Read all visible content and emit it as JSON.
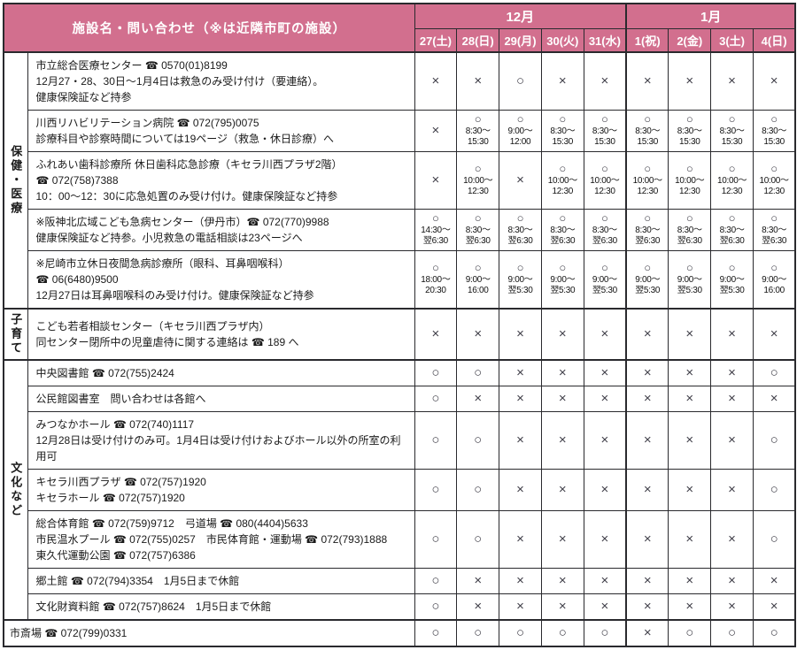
{
  "colors": {
    "header_bg": "#d26f8e",
    "border": "#2a2a2e",
    "mark": "#3f3e48"
  },
  "table": {
    "header": {
      "facility_col": "施設名・問い合わせ（※は近隣市町の施設）",
      "months": [
        {
          "label": "12月",
          "span": 5
        },
        {
          "label": "1月",
          "span": 4
        }
      ],
      "dates": [
        "27(土)",
        "28(日)",
        "29(月)",
        "30(火)",
        "31(水)",
        "1(祝)",
        "2(金)",
        "3(土)",
        "4(日)"
      ]
    },
    "marks": {
      "o": "○",
      "x": "×"
    },
    "sections": [
      {
        "category": "保健・医療",
        "rows": [
          {
            "lines": [
              "市立総合医療センター ☎ 0570(01)8199",
              "12月27・28、30日～1月4日は救急のみ受け付け（要連絡）。",
              "健康保険証など持参"
            ],
            "cells": [
              "x",
              "x",
              "o",
              "x",
              "x",
              "x",
              "x",
              "x",
              "x"
            ]
          },
          {
            "lines": [
              "川西リハビリテーション病院 ☎ 072(795)0075",
              "診療科目や診察時間については19ページ（救急・休日診療）へ"
            ],
            "cells": [
              "x",
              {
                "t": [
                  "8:30～",
                  "15:30"
                ]
              },
              {
                "t": [
                  "9:00～",
                  "12:00"
                ]
              },
              {
                "t": [
                  "8:30～",
                  "15:30"
                ]
              },
              {
                "t": [
                  "8:30～",
                  "15:30"
                ]
              },
              {
                "t": [
                  "8:30～",
                  "15:30"
                ]
              },
              {
                "t": [
                  "8:30～",
                  "15:30"
                ]
              },
              {
                "t": [
                  "8:30～",
                  "15:30"
                ]
              },
              {
                "t": [
                  "8:30～",
                  "15:30"
                ]
              }
            ]
          },
          {
            "lines": [
              "ふれあい歯科診療所 休日歯科応急診療（キセラ川西プラザ2階）",
              "☎ 072(758)7388",
              "10：00～12：30に応急処置のみ受け付け。健康保険証など持参"
            ],
            "cells": [
              "x",
              {
                "t": [
                  "10:00～",
                  "12:30"
                ]
              },
              "x",
              {
                "t": [
                  "10:00～",
                  "12:30"
                ]
              },
              {
                "t": [
                  "10:00～",
                  "12:30"
                ]
              },
              {
                "t": [
                  "10:00～",
                  "12:30"
                ]
              },
              {
                "t": [
                  "10:00～",
                  "12:30"
                ]
              },
              {
                "t": [
                  "10:00～",
                  "12:30"
                ]
              },
              {
                "t": [
                  "10:00～",
                  "12:30"
                ]
              }
            ]
          },
          {
            "lines": [
              "※阪神北広域こども急病センター（伊丹市）☎ 072(770)9988",
              "健康保険証など持参。小児救急の電話相談は23ページへ"
            ],
            "cells": [
              {
                "t": [
                  "14:30～",
                  "翌6:30"
                ]
              },
              {
                "t": [
                  "8:30～",
                  "翌6:30"
                ]
              },
              {
                "t": [
                  "8:30～",
                  "翌6:30"
                ]
              },
              {
                "t": [
                  "8:30～",
                  "翌6:30"
                ]
              },
              {
                "t": [
                  "8:30～",
                  "翌6:30"
                ]
              },
              {
                "t": [
                  "8:30～",
                  "翌6:30"
                ]
              },
              {
                "t": [
                  "8:30～",
                  "翌6:30"
                ]
              },
              {
                "t": [
                  "8:30～",
                  "翌6:30"
                ]
              },
              {
                "t": [
                  "8:30～",
                  "翌6:30"
                ]
              }
            ]
          },
          {
            "lines": [
              "※尼崎市立休日夜間急病診療所（眼科、耳鼻咽喉科）",
              "☎ 06(6480)9500",
              "12月27日は耳鼻咽喉科のみ受け付け。健康保険証など持参"
            ],
            "cells": [
              {
                "t": [
                  "18:00～",
                  "20:30"
                ]
              },
              {
                "t": [
                  "9:00～",
                  "16:00"
                ]
              },
              {
                "t": [
                  "9:00～",
                  "翌5:30"
                ]
              },
              {
                "t": [
                  "9:00～",
                  "翌5:30"
                ]
              },
              {
                "t": [
                  "9:00～",
                  "翌5:30"
                ]
              },
              {
                "t": [
                  "9:00～",
                  "翌5:30"
                ]
              },
              {
                "t": [
                  "9:00～",
                  "翌5:30"
                ]
              },
              {
                "t": [
                  "9:00～",
                  "翌5:30"
                ]
              },
              {
                "t": [
                  "9:00～",
                  "16:00"
                ]
              }
            ]
          }
        ]
      },
      {
        "category": "子育て",
        "rows": [
          {
            "lines": [
              "こども若者相談センター（キセラ川西プラザ内）",
              "同センター閉所中の児童虐待に関する連絡は ☎ 189 へ"
            ],
            "cells": [
              "x",
              "x",
              "x",
              "x",
              "x",
              "x",
              "x",
              "x",
              "x"
            ]
          }
        ]
      },
      {
        "category": "文化など",
        "rows": [
          {
            "lines": [
              "中央図書館 ☎ 072(755)2424"
            ],
            "cells": [
              "o",
              "o",
              "x",
              "x",
              "x",
              "x",
              "x",
              "x",
              "o"
            ]
          },
          {
            "lines": [
              "公民館図書室　問い合わせは各館へ"
            ],
            "cells": [
              "o",
              "x",
              "x",
              "x",
              "x",
              "x",
              "x",
              "x",
              "x"
            ]
          },
          {
            "lines": [
              "みつなかホール ☎ 072(740)1117",
              "12月28日は受け付けのみ可。1月4日は受け付けおよびホール以外の所室の利用可"
            ],
            "cells": [
              "o",
              "o",
              "x",
              "x",
              "x",
              "x",
              "x",
              "x",
              "o"
            ]
          },
          {
            "lines": [
              "キセラ川西プラザ ☎ 072(757)1920",
              "キセラホール ☎ 072(757)1920"
            ],
            "cells": [
              "o",
              "o",
              "x",
              "x",
              "x",
              "x",
              "x",
              "x",
              "o"
            ]
          },
          {
            "lines": [
              "総合体育館 ☎ 072(759)9712　弓道場 ☎ 080(4404)5633",
              "市民温水プール ☎ 072(755)0257　市民体育館・運動場 ☎ 072(793)1888",
              "東久代運動公園 ☎ 072(757)6386"
            ],
            "cells": [
              "o",
              "o",
              "x",
              "x",
              "x",
              "x",
              "x",
              "x",
              "o"
            ]
          },
          {
            "lines": [
              "郷土館 ☎ 072(794)3354　1月5日まで休館"
            ],
            "cells": [
              "o",
              "x",
              "x",
              "x",
              "x",
              "x",
              "x",
              "x",
              "x"
            ]
          },
          {
            "lines": [
              "文化財資料館 ☎ 072(757)8624　1月5日まで休館"
            ],
            "cells": [
              "o",
              "x",
              "x",
              "x",
              "x",
              "x",
              "x",
              "x",
              "x"
            ]
          }
        ]
      },
      {
        "category": null,
        "rows": [
          {
            "lines": [
              "市斎場 ☎ 072(799)0331"
            ],
            "cells": [
              "o",
              "o",
              "o",
              "o",
              "o",
              "x",
              "o",
              "o",
              "o"
            ]
          }
        ]
      }
    ]
  }
}
